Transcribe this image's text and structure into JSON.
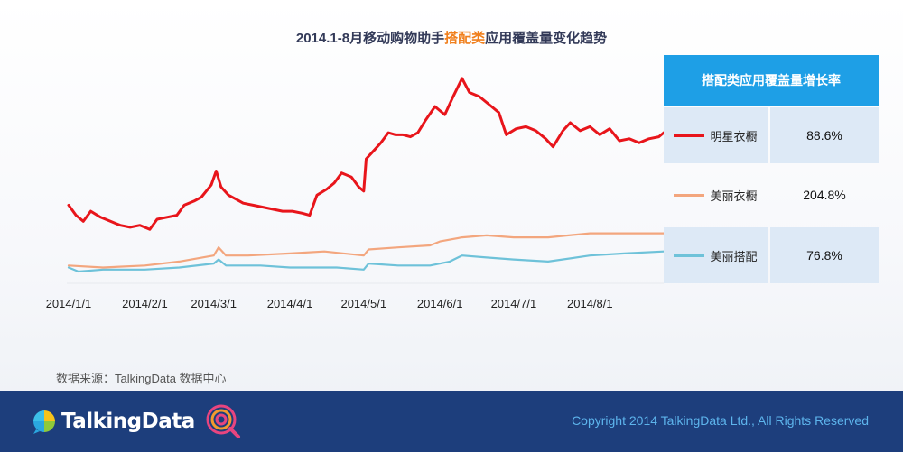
{
  "title": {
    "prefix": "2014.1-8月移动购物助手",
    "highlight": "搭配类",
    "suffix": "应用覆盖量变化趋势",
    "highlight_color": "#f07f1c"
  },
  "source_note": "数据来源：TalkingData 数据中心",
  "footer": {
    "logo_text": "TalkingData",
    "copyright": "Copyright 2014 TalkingData Ltd., All Rights Reserved",
    "background": "#1d3e7c",
    "copyright_color": "#5db4ec"
  },
  "legend_table": {
    "header": "搭配类应用覆盖量增长率",
    "header_color": "#1e9fe6",
    "rows": [
      {
        "name": "明星衣橱",
        "value": "88.6%",
        "color": "#e8151b"
      },
      {
        "name": "美丽衣橱",
        "value": "204.8%",
        "color": "#f3a67e"
      },
      {
        "name": "美丽搭配",
        "value": "76.8%",
        "color": "#6ec2d9"
      }
    ]
  },
  "chart_data": {
    "type": "line",
    "x_tick_labels": [
      "2014/1/1",
      "2014/2/1",
      "2014/3/1",
      "2014/4/1",
      "2014/5/1",
      "2014/6/1",
      "2014/7/1",
      "2014/8/1"
    ],
    "xlim": [
      "2014/1/1",
      "2014/8/31"
    ],
    "y_axis": "hidden (relative coverage index, 0 at baseline, 100 at top)",
    "ylim": [
      0,
      100
    ],
    "grid": false,
    "series": [
      {
        "name": "明星衣橱",
        "color": "#e8151b",
        "points": [
          [
            "2014/1/1",
            33
          ],
          [
            "2014/1/4",
            28
          ],
          [
            "2014/1/7",
            25
          ],
          [
            "2014/1/10",
            30
          ],
          [
            "2014/1/14",
            27
          ],
          [
            "2014/1/18",
            25
          ],
          [
            "2014/1/22",
            23
          ],
          [
            "2014/1/26",
            22
          ],
          [
            "2014/1/30",
            23
          ],
          [
            "2014/2/3",
            21
          ],
          [
            "2014/2/6",
            26
          ],
          [
            "2014/2/10",
            27
          ],
          [
            "2014/2/14",
            28
          ],
          [
            "2014/2/17",
            33
          ],
          [
            "2014/2/21",
            35
          ],
          [
            "2014/2/24",
            37
          ],
          [
            "2014/2/28",
            43
          ],
          [
            "2014/3/2",
            50
          ],
          [
            "2014/3/4",
            42
          ],
          [
            "2014/3/7",
            38
          ],
          [
            "2014/3/10",
            36
          ],
          [
            "2014/3/13",
            34
          ],
          [
            "2014/3/17",
            33
          ],
          [
            "2014/3/21",
            32
          ],
          [
            "2014/3/25",
            31
          ],
          [
            "2014/3/29",
            30
          ],
          [
            "2014/4/2",
            30
          ],
          [
            "2014/4/6",
            29
          ],
          [
            "2014/4/9",
            28
          ],
          [
            "2014/4/12",
            38
          ],
          [
            "2014/4/16",
            41
          ],
          [
            "2014/4/19",
            44
          ],
          [
            "2014/4/22",
            49
          ],
          [
            "2014/4/26",
            47
          ],
          [
            "2014/4/29",
            42
          ],
          [
            "2014/5/1",
            40
          ],
          [
            "2014/5/2",
            56
          ],
          [
            "2014/5/5",
            60
          ],
          [
            "2014/5/8",
            64
          ],
          [
            "2014/5/11",
            69
          ],
          [
            "2014/5/14",
            68
          ],
          [
            "2014/5/17",
            68
          ],
          [
            "2014/5/20",
            67
          ],
          [
            "2014/5/23",
            69
          ],
          [
            "2014/5/26",
            75
          ],
          [
            "2014/5/30",
            82
          ],
          [
            "2014/6/3",
            78
          ],
          [
            "2014/6/6",
            86
          ],
          [
            "2014/6/10",
            96
          ],
          [
            "2014/6/13",
            89
          ],
          [
            "2014/6/17",
            87
          ],
          [
            "2014/6/21",
            83
          ],
          [
            "2014/6/25",
            79
          ],
          [
            "2014/6/28",
            68
          ],
          [
            "2014/7/2",
            71
          ],
          [
            "2014/7/6",
            72
          ],
          [
            "2014/7/10",
            70
          ],
          [
            "2014/7/14",
            66
          ],
          [
            "2014/7/17",
            62
          ],
          [
            "2014/7/21",
            70
          ],
          [
            "2014/7/24",
            74
          ],
          [
            "2014/7/28",
            70
          ],
          [
            "2014/8/1",
            72
          ],
          [
            "2014/8/5",
            68
          ],
          [
            "2014/8/9",
            71
          ],
          [
            "2014/8/13",
            65
          ],
          [
            "2014/8/17",
            66
          ],
          [
            "2014/8/21",
            64
          ],
          [
            "2014/8/25",
            66
          ],
          [
            "2014/8/29",
            67
          ],
          [
            "2014/8/31",
            69
          ]
        ]
      },
      {
        "name": "美丽衣橱",
        "color": "#f3a67e",
        "points": [
          [
            "2014/1/1",
            3
          ],
          [
            "2014/1/15",
            2
          ],
          [
            "2014/2/1",
            3
          ],
          [
            "2014/2/15",
            5
          ],
          [
            "2014/3/1",
            8
          ],
          [
            "2014/3/3",
            12
          ],
          [
            "2014/3/6",
            8
          ],
          [
            "2014/3/15",
            8
          ],
          [
            "2014/4/1",
            9
          ],
          [
            "2014/4/15",
            10
          ],
          [
            "2014/5/1",
            8
          ],
          [
            "2014/5/3",
            11
          ],
          [
            "2014/5/15",
            12
          ],
          [
            "2014/5/28",
            13
          ],
          [
            "2014/6/1",
            15
          ],
          [
            "2014/6/10",
            17
          ],
          [
            "2014/6/20",
            18
          ],
          [
            "2014/7/1",
            17
          ],
          [
            "2014/7/15",
            17
          ],
          [
            "2014/8/1",
            19
          ],
          [
            "2014/8/15",
            19
          ],
          [
            "2014/8/31",
            19
          ]
        ]
      },
      {
        "name": "美丽搭配",
        "color": "#6ec2d9",
        "points": [
          [
            "2014/1/1",
            2
          ],
          [
            "2014/1/5",
            0
          ],
          [
            "2014/1/15",
            1
          ],
          [
            "2014/2/1",
            1
          ],
          [
            "2014/2/15",
            2
          ],
          [
            "2014/3/1",
            4
          ],
          [
            "2014/3/3",
            6
          ],
          [
            "2014/3/6",
            3
          ],
          [
            "2014/3/20",
            3
          ],
          [
            "2014/4/1",
            2
          ],
          [
            "2014/4/20",
            2
          ],
          [
            "2014/5/1",
            1
          ],
          [
            "2014/5/3",
            4
          ],
          [
            "2014/5/15",
            3
          ],
          [
            "2014/5/28",
            3
          ],
          [
            "2014/6/5",
            5
          ],
          [
            "2014/6/10",
            8
          ],
          [
            "2014/6/20",
            7
          ],
          [
            "2014/7/1",
            6
          ],
          [
            "2014/7/15",
            5
          ],
          [
            "2014/8/1",
            8
          ],
          [
            "2014/8/15",
            9
          ],
          [
            "2014/8/31",
            10
          ]
        ]
      }
    ]
  }
}
